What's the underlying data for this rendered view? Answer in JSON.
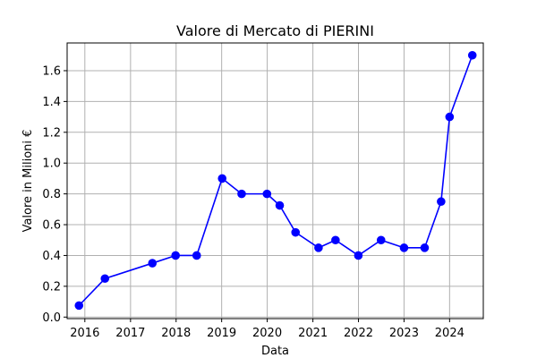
{
  "chart_data": {
    "type": "line",
    "title": "Valore di Mercato di PIERINI",
    "xlabel": "Data",
    "ylabel": "Valore in Milioni €",
    "grid": true,
    "legend": "none",
    "x_type": "date",
    "xlim": [
      "2015-08-12",
      "2024-09-27"
    ],
    "ylim": [
      -0.01,
      1.78
    ],
    "xticks": [
      {
        "value": "2016-01-01",
        "label": "2016"
      },
      {
        "value": "2017-01-01",
        "label": "2017"
      },
      {
        "value": "2018-01-01",
        "label": "2018"
      },
      {
        "value": "2019-01-01",
        "label": "2019"
      },
      {
        "value": "2020-01-01",
        "label": "2020"
      },
      {
        "value": "2021-01-01",
        "label": "2021"
      },
      {
        "value": "2022-01-01",
        "label": "2022"
      },
      {
        "value": "2023-01-01",
        "label": "2023"
      },
      {
        "value": "2024-01-01",
        "label": "2024"
      }
    ],
    "yticks": [
      {
        "value": 0.0,
        "label": "0.0"
      },
      {
        "value": 0.2,
        "label": "0.2"
      },
      {
        "value": 0.4,
        "label": "0.4"
      },
      {
        "value": 0.6,
        "label": "0.6"
      },
      {
        "value": 0.8,
        "label": "0.8"
      },
      {
        "value": 1.0,
        "label": "1.0"
      },
      {
        "value": 1.2,
        "label": "1.2"
      },
      {
        "value": 1.4,
        "label": "1.4"
      },
      {
        "value": 1.6,
        "label": "1.6"
      }
    ],
    "series": [
      {
        "color": "#0000ff",
        "marker": "circle",
        "x": [
          "2015-11-15",
          "2016-06-10",
          "2017-06-25",
          "2017-12-28",
          "2018-06-15",
          "2019-01-05",
          "2019-06-10",
          "2019-12-30",
          "2020-04-10",
          "2020-08-15",
          "2021-02-15",
          "2021-07-01",
          "2021-12-31",
          "2022-07-01",
          "2023-01-01",
          "2023-06-15",
          "2023-10-25",
          "2024-01-01",
          "2024-07-01"
        ],
        "values": [
          0.075,
          0.25,
          0.35,
          0.4,
          0.4,
          0.9,
          0.8,
          0.8,
          0.725,
          0.55,
          0.45,
          0.5,
          0.4,
          0.5,
          0.45,
          0.45,
          0.75,
          1.3,
          1.7
        ]
      }
    ]
  }
}
